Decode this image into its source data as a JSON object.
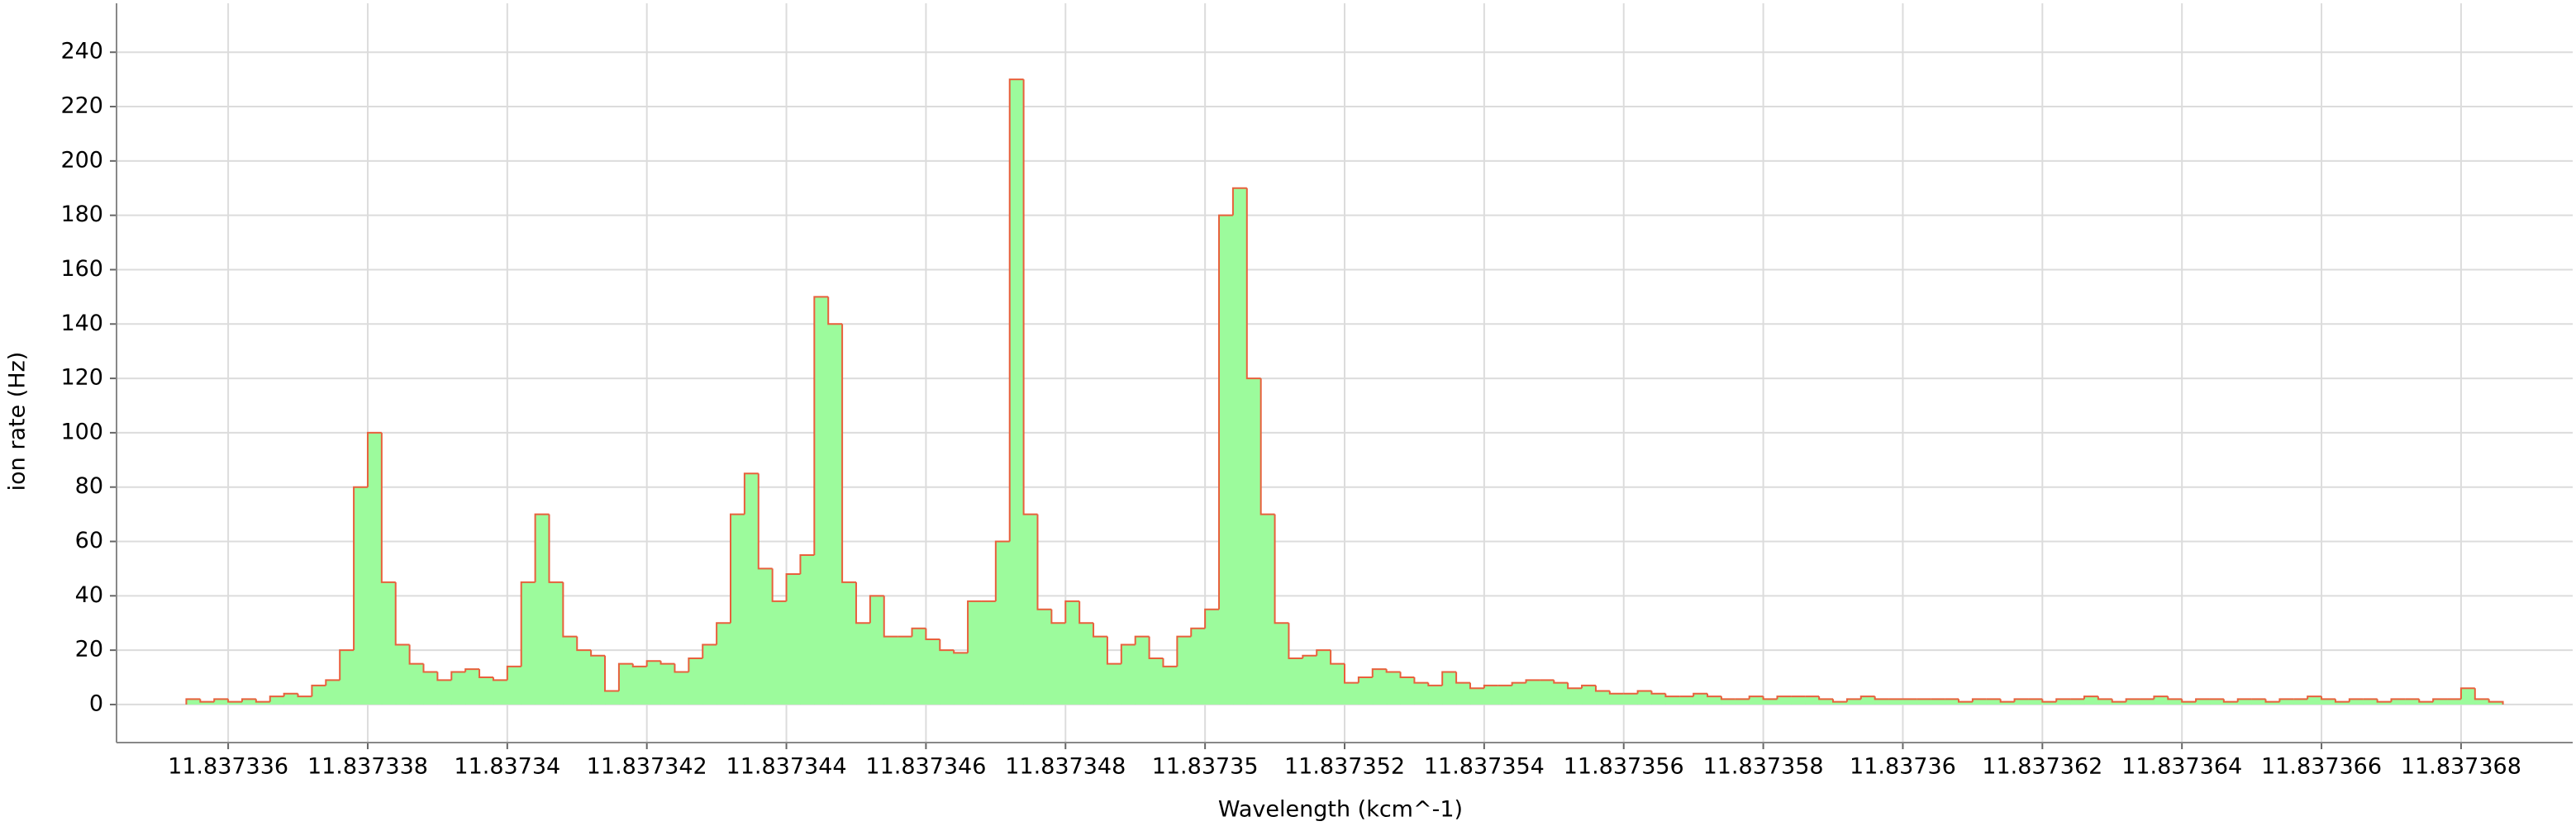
{
  "chart_data": {
    "type": "histogram",
    "x_label": "Wavelength (kcm^-1)",
    "y_label": "ion rate (Hz)",
    "bins": [
      11.8373354,
      11.8373356,
      11.8373358,
      11.837336,
      11.8373362,
      11.8373364,
      11.8373366,
      11.8373368,
      11.837337,
      11.8373372,
      11.8373374,
      11.8373376,
      11.8373378,
      11.837338,
      11.8373382,
      11.8373384,
      11.8373386,
      11.8373388,
      11.837339,
      11.8373392,
      11.8373394,
      11.8373396,
      11.8373398,
      11.83734,
      11.8373402,
      11.8373404,
      11.8373406,
      11.8373408,
      11.837341,
      11.8373412,
      11.8373414,
      11.8373416,
      11.8373418,
      11.837342,
      11.8373422,
      11.8373424,
      11.8373426,
      11.8373428,
      11.837343,
      11.8373432,
      11.8373434,
      11.8373436,
      11.8373438,
      11.837344,
      11.8373442,
      11.8373444,
      11.8373446,
      11.8373448,
      11.837345,
      11.8373452,
      11.8373454,
      11.8373456,
      11.8373458,
      11.837346,
      11.8373462,
      11.8373464,
      11.8373466,
      11.8373468,
      11.837347,
      11.8373472,
      11.8373474,
      11.8373476,
      11.8373478,
      11.837348,
      11.8373482,
      11.8373484,
      11.8373486,
      11.8373488,
      11.837349,
      11.8373492,
      11.8373494,
      11.8373496,
      11.8373498,
      11.83735,
      11.8373502,
      11.8373504,
      11.8373506,
      11.8373508,
      11.837351,
      11.8373512,
      11.8373514,
      11.8373516,
      11.8373518,
      11.837352,
      11.8373522,
      11.8373524,
      11.8373526,
      11.8373528,
      11.837353,
      11.8373532,
      11.8373534,
      11.8373536,
      11.8373538,
      11.837354,
      11.8373542,
      11.8373544,
      11.8373546,
      11.8373548,
      11.837355,
      11.8373552,
      11.8373554,
      11.8373556,
      11.8373558,
      11.837356,
      11.8373562,
      11.8373564,
      11.8373566,
      11.8373568,
      11.837357,
      11.8373572,
      11.8373574,
      11.8373576,
      11.8373578,
      11.837358,
      11.8373582,
      11.8373584,
      11.8373586,
      11.8373588,
      11.837359,
      11.8373592,
      11.8373594,
      11.8373596,
      11.8373598,
      11.83736,
      11.8373602,
      11.8373604,
      11.8373606,
      11.8373608,
      11.837361,
      11.8373612,
      11.8373614,
      11.8373616,
      11.8373618,
      11.837362,
      11.8373622,
      11.8373624,
      11.8373626,
      11.8373628,
      11.837363,
      11.8373632,
      11.8373634,
      11.8373636,
      11.8373638,
      11.837364,
      11.8373642,
      11.8373644,
      11.8373646,
      11.8373648,
      11.837365,
      11.8373652,
      11.8373654,
      11.8373656,
      11.8373658,
      11.837366,
      11.8373662,
      11.8373664,
      11.8373666,
      11.8373668,
      11.837367,
      11.8373672,
      11.8373674,
      11.8373676,
      11.8373678,
      11.837368,
      11.8373682,
      11.8373684,
      11.8373686
    ],
    "values": [
      2,
      1,
      2,
      1,
      2,
      1,
      3,
      4,
      3,
      7,
      9,
      20,
      80,
      100,
      45,
      22,
      15,
      12,
      9,
      12,
      13,
      10,
      9,
      14,
      45,
      70,
      45,
      25,
      20,
      18,
      5,
      15,
      14,
      16,
      15,
      12,
      17,
      22,
      30,
      70,
      85,
      50,
      38,
      48,
      55,
      150,
      140,
      45,
      30,
      40,
      25,
      25,
      28,
      24,
      20,
      19,
      38,
      38,
      60,
      230,
      70,
      35,
      30,
      38,
      30,
      25,
      15,
      22,
      25,
      17,
      14,
      25,
      28,
      35,
      180,
      190,
      120,
      70,
      30,
      17,
      18,
      20,
      15,
      8,
      10,
      13,
      12,
      10,
      8,
      7,
      12,
      8,
      6,
      7,
      7,
      8,
      9,
      9,
      8,
      6,
      7,
      5,
      4,
      4,
      5,
      4,
      3,
      3,
      4,
      3,
      2,
      2,
      3,
      2,
      3,
      3,
      3,
      2,
      1,
      2,
      3,
      2,
      2,
      2,
      2,
      2,
      2,
      1,
      2,
      2,
      1,
      2,
      2,
      1,
      2,
      2,
      3,
      2,
      1,
      2,
      2,
      3,
      2,
      1,
      2,
      2,
      1,
      2,
      2,
      1,
      2,
      2,
      3,
      2,
      1,
      2,
      2,
      1,
      2,
      2,
      1,
      2,
      2,
      6,
      2,
      1
    ],
    "color": "#9cfb9c",
    "edge_color": "#e8603c",
    "xlim": [
      11.8373344,
      11.8373696
    ],
    "xticks": [
      11.837336,
      11.837338,
      11.83734,
      11.837342,
      11.837344,
      11.837346,
      11.837348,
      11.83735,
      11.837352,
      11.837354,
      11.837356,
      11.837358,
      11.83736,
      11.837362,
      11.837364,
      11.837366,
      11.837368
    ],
    "ylim": [
      -14,
      258
    ],
    "yticks": [
      0,
      20,
      40,
      60,
      80,
      100,
      120,
      140,
      160,
      180,
      200,
      220,
      240
    ],
    "grid": true
  }
}
